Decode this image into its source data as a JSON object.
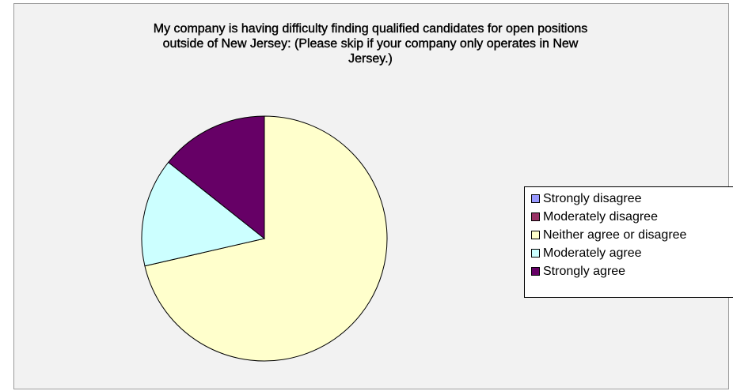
{
  "chart_data": {
    "type": "pie",
    "title": "My company is having difficulty finding qualified candidates for open positions outside of New Jersey: (Please skip if your company only operates in New Jersey.)",
    "title_lines": [
      "My company is having difficulty finding qualified candidates for open positions",
      "outside of New Jersey: (Please skip if your company only operates in New",
      "Jersey.)"
    ],
    "categories": [
      "Strongly disagree",
      "Moderately disagree",
      "Neither agree or disagree",
      "Moderately agree",
      "Strongly agree"
    ],
    "values": [
      0,
      0,
      71.4,
      14.3,
      14.3
    ],
    "colors": [
      "#9999ff",
      "#993366",
      "#ffffcc",
      "#ccffff",
      "#660066"
    ],
    "legend_position": "right",
    "start_angle_deg": 0,
    "direction": "clockwise"
  }
}
